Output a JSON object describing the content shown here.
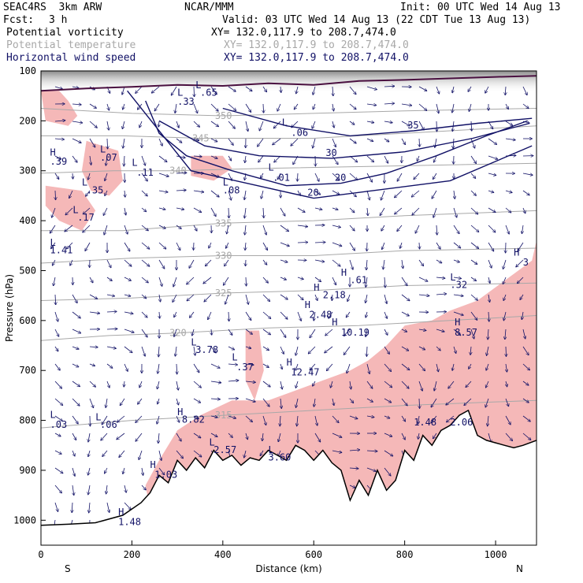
{
  "header": {
    "model": "SEAC4RS  3km ARW",
    "org": "NCAR/MMM",
    "init": "Init: 00 UTC Wed 14 Aug 13",
    "fcst_label": "Fcst:",
    "fcst_value": "3 h",
    "valid": "Valid: 03 UTC Wed 14 Aug 13 (22 CDT Tue 13 Aug 13)",
    "fields": [
      {
        "name": "Potential vorticity",
        "xy": "XY= 132.0,117.9 to 208.7,474.0",
        "color": "#000000"
      },
      {
        "name": "Potential temperature",
        "xy": "XY= 132.0,117.9 to 208.7,474.0",
        "color": "#a8a8a8"
      },
      {
        "name": "Horizontal wind speed",
        "xy": "XY= 132.0,117.9 to 208.7,474.0",
        "color": "#111166"
      }
    ]
  },
  "chart_data": {
    "type": "cross-section",
    "xlabel": "Distance (km)",
    "ylabel": "Pressure (hPa)",
    "xlim": [
      0,
      1090
    ],
    "ylim": [
      1050,
      100
    ],
    "x_ticks": [
      0,
      200,
      400,
      600,
      800,
      1000
    ],
    "y_ticks": [
      100,
      200,
      300,
      400,
      500,
      600,
      700,
      800,
      900,
      1000
    ],
    "endpoints": {
      "left": "S",
      "right": "N"
    },
    "terrain_pressure": [
      [
        0,
        1010
      ],
      [
        60,
        1008
      ],
      [
        120,
        1005
      ],
      [
        180,
        990
      ],
      [
        220,
        965
      ],
      [
        240,
        945
      ],
      [
        260,
        910
      ],
      [
        280,
        925
      ],
      [
        300,
        880
      ],
      [
        320,
        900
      ],
      [
        340,
        875
      ],
      [
        360,
        895
      ],
      [
        380,
        860
      ],
      [
        400,
        880
      ],
      [
        420,
        870
      ],
      [
        440,
        890
      ],
      [
        460,
        875
      ],
      [
        480,
        880
      ],
      [
        500,
        860
      ],
      [
        520,
        870
      ],
      [
        540,
        880
      ],
      [
        560,
        850
      ],
      [
        580,
        860
      ],
      [
        600,
        880
      ],
      [
        620,
        860
      ],
      [
        640,
        885
      ],
      [
        660,
        900
      ],
      [
        680,
        960
      ],
      [
        700,
        920
      ],
      [
        720,
        950
      ],
      [
        740,
        900
      ],
      [
        760,
        940
      ],
      [
        780,
        920
      ],
      [
        800,
        860
      ],
      [
        820,
        880
      ],
      [
        840,
        830
      ],
      [
        860,
        850
      ],
      [
        880,
        820
      ],
      [
        900,
        810
      ],
      [
        920,
        790
      ],
      [
        940,
        780
      ],
      [
        960,
        830
      ],
      [
        980,
        840
      ],
      [
        1000,
        845
      ],
      [
        1020,
        850
      ],
      [
        1040,
        855
      ],
      [
        1060,
        850
      ],
      [
        1090,
        840
      ]
    ],
    "wind_speed_contours": [
      {
        "level": "20",
        "points": [
          [
            230,
            160
          ],
          [
            260,
            225
          ],
          [
            320,
            270
          ],
          [
            420,
            300
          ],
          [
            540,
            330
          ],
          [
            660,
            325
          ],
          [
            760,
            305
          ],
          [
            870,
            270
          ],
          [
            980,
            230
          ],
          [
            1070,
            200
          ]
        ]
      },
      {
        "level": "20",
        "points": [
          [
            190,
            140
          ],
          [
            330,
            300
          ],
          [
            600,
            355
          ],
          [
            900,
            320
          ],
          [
            1080,
            250
          ]
        ]
      },
      {
        "level": "30",
        "points": [
          [
            260,
            200
          ],
          [
            360,
            250
          ],
          [
            480,
            270
          ],
          [
            640,
            275
          ],
          [
            800,
            262
          ],
          [
            950,
            235
          ],
          [
            1075,
            205
          ]
        ]
      },
      {
        "level": "35",
        "points": [
          [
            400,
            175
          ],
          [
            540,
            210
          ],
          [
            680,
            230
          ],
          [
            820,
            220
          ],
          [
            960,
            205
          ],
          [
            1080,
            195
          ]
        ]
      }
    ],
    "theta_contours": [
      {
        "level": "350",
        "points": [
          [
            0,
            175
          ],
          [
            200,
            185
          ],
          [
            400,
            190
          ],
          [
            600,
            185
          ],
          [
            800,
            180
          ],
          [
            1090,
            175
          ]
        ]
      },
      {
        "level": "345",
        "points": [
          [
            0,
            230
          ],
          [
            180,
            230
          ],
          [
            350,
            235
          ],
          [
            600,
            235
          ],
          [
            900,
            220
          ],
          [
            1090,
            210
          ]
        ]
      },
      {
        "level": "340",
        "points": [
          [
            0,
            305
          ],
          [
            160,
            300
          ],
          [
            300,
            300
          ],
          [
            500,
            295
          ],
          [
            800,
            290
          ],
          [
            1090,
            285
          ]
        ]
      },
      {
        "level": "335",
        "points": [
          [
            0,
            420
          ],
          [
            180,
            420
          ],
          [
            400,
            405
          ],
          [
            600,
            400
          ],
          [
            800,
            390
          ],
          [
            1090,
            380
          ]
        ]
      },
      {
        "level": "330",
        "points": [
          [
            0,
            485
          ],
          [
            200,
            475
          ],
          [
            400,
            470
          ],
          [
            600,
            470
          ],
          [
            800,
            460
          ],
          [
            1090,
            455
          ]
        ]
      },
      {
        "level": "325",
        "points": [
          [
            0,
            560
          ],
          [
            200,
            555
          ],
          [
            400,
            545
          ],
          [
            600,
            540
          ],
          [
            800,
            530
          ],
          [
            1090,
            525
          ]
        ]
      },
      {
        "level": "320",
        "points": [
          [
            0,
            640
          ],
          [
            150,
            630
          ],
          [
            300,
            625
          ],
          [
            500,
            615
          ],
          [
            700,
            610
          ],
          [
            900,
            600
          ],
          [
            1090,
            590
          ]
        ]
      },
      {
        "level": "315",
        "points": [
          [
            0,
            815
          ],
          [
            200,
            800
          ],
          [
            400,
            790
          ],
          [
            600,
            780
          ],
          [
            800,
            770
          ],
          [
            1090,
            760
          ]
        ]
      }
    ],
    "pv_shading": {
      "color": "#f5b8b8",
      "regions": [
        [
          [
            0,
            140
          ],
          [
            40,
            140
          ],
          [
            60,
            160
          ],
          [
            80,
            190
          ],
          [
            60,
            210
          ],
          [
            10,
            200
          ]
        ],
        [
          [
            100,
            240
          ],
          [
            170,
            260
          ],
          [
            180,
            320
          ],
          [
            150,
            350
          ],
          [
            110,
            340
          ],
          [
            90,
            300
          ]
        ],
        [
          [
            10,
            330
          ],
          [
            90,
            340
          ],
          [
            120,
            380
          ],
          [
            90,
            420
          ],
          [
            40,
            400
          ],
          [
            10,
            370
          ]
        ],
        [
          [
            330,
            270
          ],
          [
            400,
            270
          ],
          [
            420,
            295
          ],
          [
            380,
            320
          ],
          [
            330,
            310
          ]
        ],
        [
          [
            230,
            930
          ],
          [
            260,
            880
          ],
          [
            300,
            820
          ],
          [
            350,
            790
          ],
          [
            420,
            760
          ],
          [
            500,
            760
          ],
          [
            560,
            740
          ],
          [
            620,
            720
          ],
          [
            680,
            700
          ],
          [
            720,
            680
          ],
          [
            760,
            650
          ],
          [
            800,
            610
          ],
          [
            860,
            600
          ],
          [
            900,
            580
          ],
          [
            960,
            560
          ],
          [
            1020,
            520
          ],
          [
            1080,
            480
          ],
          [
            1090,
            440
          ],
          [
            1090,
            900
          ],
          [
            1000,
            860
          ],
          [
            900,
            860
          ],
          [
            800,
            920
          ],
          [
            700,
            960
          ],
          [
            600,
            920
          ],
          [
            500,
            890
          ],
          [
            400,
            930
          ],
          [
            300,
            960
          ],
          [
            240,
            980
          ]
        ],
        [
          [
            450,
            620
          ],
          [
            480,
            620
          ],
          [
            490,
            700
          ],
          [
            470,
            760
          ],
          [
            450,
            720
          ]
        ]
      ]
    },
    "annotations": [
      {
        "text": "L",
        "x": 340,
        "y": 135,
        "color": "#111166"
      },
      {
        "text": ".65",
        "x": 350,
        "y": 150,
        "color": "#111166"
      },
      {
        "text": "L",
        "x": 300,
        "y": 150,
        "color": "#111166"
      },
      {
        "text": ".33",
        "x": 300,
        "y": 168,
        "color": "#111166"
      },
      {
        "text": "H",
        "x": 20,
        "y": 270,
        "color": "#111166"
      },
      {
        "text": ".39",
        "x": 20,
        "y": 288,
        "color": "#111166"
      },
      {
        "text": "L",
        "x": 130,
        "y": 263,
        "color": "#111166"
      },
      {
        "text": ".07",
        "x": 130,
        "y": 280,
        "color": "#111166"
      },
      {
        "text": "L",
        "x": 200,
        "y": 290,
        "color": "#111166"
      },
      {
        "text": ".11",
        "x": 210,
        "y": 310,
        "color": "#111166"
      },
      {
        "text": "L",
        "x": 90,
        "y": 330,
        "color": "#111166"
      },
      {
        "text": ".35",
        "x": 100,
        "y": 345,
        "color": "#111166"
      },
      {
        "text": "L",
        "x": 70,
        "y": 385,
        "color": "#111166"
      },
      {
        "text": ".17",
        "x": 80,
        "y": 400,
        "color": "#111166"
      },
      {
        "text": "L",
        "x": 20,
        "y": 450,
        "color": "#111166"
      },
      {
        "text": "1.41",
        "x": 20,
        "y": 465,
        "color": "#111166"
      },
      {
        "text": "L",
        "x": 530,
        "y": 210,
        "color": "#111166"
      },
      {
        "text": ".06",
        "x": 550,
        "y": 230,
        "color": "#111166"
      },
      {
        "text": "L",
        "x": 500,
        "y": 300,
        "color": "#111166"
      },
      {
        "text": ".01",
        "x": 510,
        "y": 320,
        "color": "#111166"
      },
      {
        "text": "L",
        "x": 400,
        "y": 330,
        "color": "#111166"
      },
      {
        "text": ".08",
        "x": 400,
        "y": 345,
        "color": "#111166"
      },
      {
        "text": "H",
        "x": 660,
        "y": 510,
        "color": "#111166"
      },
      {
        "text": ".61",
        "x": 680,
        "y": 525,
        "color": "#111166"
      },
      {
        "text": "H",
        "x": 600,
        "y": 540,
        "color": "#111166"
      },
      {
        "text": "2.18",
        "x": 620,
        "y": 555,
        "color": "#111166"
      },
      {
        "text": "H",
        "x": 580,
        "y": 575,
        "color": "#111166"
      },
      {
        "text": "2.48",
        "x": 590,
        "y": 595,
        "color": "#111166"
      },
      {
        "text": "H",
        "x": 640,
        "y": 610,
        "color": "#111166"
      },
      {
        "text": "10.19",
        "x": 660,
        "y": 630,
        "color": "#111166"
      },
      {
        "text": "L",
        "x": 330,
        "y": 650,
        "color": "#111166"
      },
      {
        "text": "3.78",
        "x": 340,
        "y": 665,
        "color": "#111166"
      },
      {
        "text": "L",
        "x": 420,
        "y": 680,
        "color": "#111166"
      },
      {
        "text": ".37",
        "x": 430,
        "y": 700,
        "color": "#111166"
      },
      {
        "text": "H",
        "x": 540,
        "y": 690,
        "color": "#111166"
      },
      {
        "text": "12.47",
        "x": 550,
        "y": 710,
        "color": "#111166"
      },
      {
        "text": "L",
        "x": 900,
        "y": 520,
        "color": "#111166"
      },
      {
        "text": ".32",
        "x": 900,
        "y": 535,
        "color": "#111166"
      },
      {
        "text": "H",
        "x": 910,
        "y": 610,
        "color": "#111166"
      },
      {
        "text": "8.57",
        "x": 910,
        "y": 630,
        "color": "#111166"
      },
      {
        "text": "H",
        "x": 1040,
        "y": 470,
        "color": "#111166"
      },
      {
        "text": "3",
        "x": 1060,
        "y": 490,
        "color": "#111166"
      },
      {
        "text": "H",
        "x": 300,
        "y": 790,
        "color": "#111166"
      },
      {
        "text": "8.82",
        "x": 310,
        "y": 805,
        "color": "#111166"
      },
      {
        "text": "L",
        "x": 20,
        "y": 795,
        "color": "#111166"
      },
      {
        "text": ".03",
        "x": 20,
        "y": 815,
        "color": "#111166"
      },
      {
        "text": "L",
        "x": 120,
        "y": 800,
        "color": "#111166"
      },
      {
        "text": ".06",
        "x": 130,
        "y": 815,
        "color": "#111166"
      },
      {
        "text": "L",
        "x": 370,
        "y": 850,
        "color": "#111166"
      },
      {
        "text": "2.57",
        "x": 380,
        "y": 865,
        "color": "#111166"
      },
      {
        "text": "L",
        "x": 500,
        "y": 865,
        "color": "#111166"
      },
      {
        "text": "3.60",
        "x": 500,
        "y": 880,
        "color": "#111166"
      },
      {
        "text": "H",
        "x": 240,
        "y": 895,
        "color": "#111166"
      },
      {
        "text": "1.03",
        "x": 250,
        "y": 915,
        "color": "#111166"
      },
      {
        "text": "H",
        "x": 170,
        "y": 990,
        "color": "#111166"
      },
      {
        "text": "1.48",
        "x": 170,
        "y": 1010,
        "color": "#111166"
      },
      {
        "text": "1.48",
        "x": 820,
        "y": 810,
        "color": "#111166"
      },
      {
        "text": "2.06",
        "x": 900,
        "y": 810,
        "color": "#111166"
      }
    ]
  }
}
